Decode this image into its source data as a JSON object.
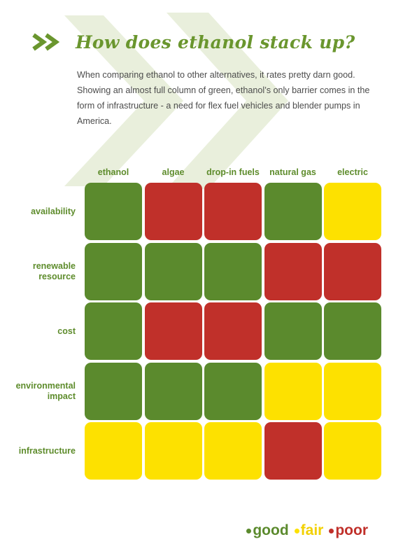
{
  "title": "How does ethanol stack up?",
  "intro": "When comparing ethanol to other alternatives, it rates pretty darn good. Showing an almost full column of green, ethanol’s only barrier comes in the form of infrastructure - a need for flex fuel vehicles and blender pumps in America.",
  "columns": [
    "ethanol",
    "algae",
    "drop-in fuels",
    "natural gas",
    "electric"
  ],
  "rows": [
    {
      "label_lines": [
        "availability"
      ],
      "ratings": [
        "good",
        "poor",
        "poor",
        "good",
        "fair"
      ]
    },
    {
      "label_lines": [
        "renewable",
        "resource"
      ],
      "ratings": [
        "good",
        "good",
        "good",
        "poor",
        "poor"
      ]
    },
    {
      "label_lines": [
        "cost"
      ],
      "ratings": [
        "good",
        "poor",
        "poor",
        "good",
        "good"
      ]
    },
    {
      "label_lines": [
        "environmental",
        "impact"
      ],
      "ratings": [
        "good",
        "good",
        "good",
        "fair",
        "fair"
      ]
    },
    {
      "label_lines": [
        "infrastructure"
      ],
      "ratings": [
        "fair",
        "fair",
        "fair",
        "poor",
        "fair"
      ]
    }
  ],
  "legend": [
    {
      "key": "good",
      "label": "good"
    },
    {
      "key": "fair",
      "label": "fair"
    },
    {
      "key": "poor",
      "label": "poor"
    }
  ],
  "colors": {
    "good": "#5b8a2d",
    "fair": "#fde100",
    "poor": "#c0302a",
    "title": "#6a962e",
    "label": "#5e8c2c",
    "body_text": "#4c4c4c",
    "chevron_bg": "#e9efdc"
  },
  "icons": {
    "title": "double-chevron-icon",
    "background": "large-double-chevron-watermark"
  }
}
